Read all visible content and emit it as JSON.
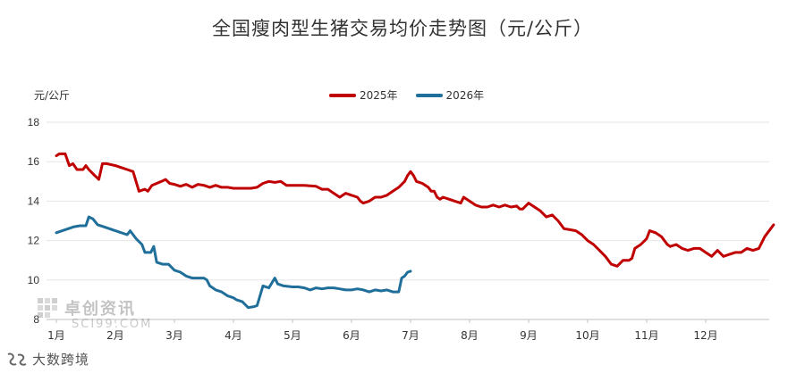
{
  "chart_data": {
    "type": "line",
    "title": "全国瘦肉型生猪交易均价走势图（元/公斤）",
    "ylabel": "元/公斤",
    "ylim": [
      8,
      18
    ],
    "yticks": [
      8,
      10,
      12,
      14,
      16,
      18
    ],
    "categories": [
      "1月",
      "2月",
      "3月",
      "4月",
      "5月",
      "6月",
      "7月",
      "8月",
      "9月",
      "10月",
      "11月",
      "12月"
    ],
    "grid": "horizontal",
    "legend": "top-center",
    "series": [
      {
        "name": "2025年",
        "color": "#c00000",
        "points": [
          [
            1.0,
            16.3
          ],
          [
            1.05,
            16.4
          ],
          [
            1.15,
            16.4
          ],
          [
            1.22,
            15.8
          ],
          [
            1.28,
            15.9
          ],
          [
            1.35,
            15.6
          ],
          [
            1.45,
            15.6
          ],
          [
            1.5,
            15.8
          ],
          [
            1.55,
            15.6
          ],
          [
            1.65,
            15.3
          ],
          [
            1.72,
            15.1
          ],
          [
            1.78,
            15.9
          ],
          [
            1.85,
            15.9
          ],
          [
            2.0,
            15.8
          ],
          [
            2.1,
            15.7
          ],
          [
            2.2,
            15.6
          ],
          [
            2.3,
            15.5
          ],
          [
            2.35,
            15.0
          ],
          [
            2.4,
            14.5
          ],
          [
            2.5,
            14.6
          ],
          [
            2.55,
            14.5
          ],
          [
            2.62,
            14.8
          ],
          [
            2.7,
            14.9
          ],
          [
            2.78,
            15.0
          ],
          [
            2.85,
            15.1
          ],
          [
            2.92,
            14.9
          ],
          [
            3.0,
            14.85
          ],
          [
            3.1,
            14.75
          ],
          [
            3.2,
            14.85
          ],
          [
            3.3,
            14.7
          ],
          [
            3.4,
            14.85
          ],
          [
            3.5,
            14.8
          ],
          [
            3.6,
            14.7
          ],
          [
            3.7,
            14.8
          ],
          [
            3.8,
            14.7
          ],
          [
            3.9,
            14.7
          ],
          [
            4.0,
            14.65
          ],
          [
            4.2,
            14.65
          ],
          [
            4.3,
            14.65
          ],
          [
            4.4,
            14.7
          ],
          [
            4.5,
            14.9
          ],
          [
            4.6,
            15.0
          ],
          [
            4.7,
            14.95
          ],
          [
            4.8,
            15.0
          ],
          [
            4.9,
            14.8
          ],
          [
            5.0,
            14.8
          ],
          [
            5.2,
            14.8
          ],
          [
            5.4,
            14.75
          ],
          [
            5.5,
            14.6
          ],
          [
            5.6,
            14.6
          ],
          [
            5.7,
            14.4
          ],
          [
            5.8,
            14.2
          ],
          [
            5.9,
            14.4
          ],
          [
            6.0,
            14.3
          ],
          [
            6.1,
            14.2
          ],
          [
            6.15,
            14.0
          ],
          [
            6.2,
            13.9
          ],
          [
            6.3,
            14.0
          ],
          [
            6.4,
            14.2
          ],
          [
            6.5,
            14.2
          ],
          [
            6.6,
            14.3
          ],
          [
            6.7,
            14.5
          ],
          [
            6.8,
            14.7
          ],
          [
            6.9,
            15.0
          ],
          [
            6.95,
            15.3
          ],
          [
            7.0,
            15.5
          ],
          [
            7.05,
            15.3
          ],
          [
            7.1,
            15.0
          ],
          [
            7.2,
            14.9
          ],
          [
            7.3,
            14.7
          ],
          [
            7.35,
            14.5
          ],
          [
            7.4,
            14.5
          ],
          [
            7.45,
            14.2
          ],
          [
            7.5,
            14.1
          ],
          [
            7.55,
            14.2
          ],
          [
            7.65,
            14.1
          ],
          [
            7.75,
            14.0
          ],
          [
            7.85,
            13.9
          ],
          [
            7.9,
            14.2
          ],
          [
            8.0,
            14.0
          ],
          [
            8.1,
            13.8
          ],
          [
            8.2,
            13.7
          ],
          [
            8.3,
            13.7
          ],
          [
            8.4,
            13.8
          ],
          [
            8.5,
            13.7
          ],
          [
            8.6,
            13.8
          ],
          [
            8.7,
            13.7
          ],
          [
            8.8,
            13.75
          ],
          [
            8.85,
            13.6
          ],
          [
            8.9,
            13.6
          ],
          [
            9.0,
            13.9
          ],
          [
            9.1,
            13.7
          ],
          [
            9.2,
            13.5
          ],
          [
            9.3,
            13.2
          ],
          [
            9.4,
            13.3
          ],
          [
            9.5,
            13.0
          ],
          [
            9.6,
            12.6
          ],
          [
            9.7,
            12.55
          ],
          [
            9.8,
            12.5
          ],
          [
            9.9,
            12.3
          ],
          [
            10.0,
            12.0
          ],
          [
            10.1,
            11.8
          ],
          [
            10.2,
            11.5
          ],
          [
            10.3,
            11.2
          ],
          [
            10.4,
            10.8
          ],
          [
            10.5,
            10.7
          ],
          [
            10.6,
            11.0
          ],
          [
            10.7,
            11.0
          ],
          [
            10.75,
            11.1
          ],
          [
            10.8,
            11.6
          ],
          [
            10.9,
            11.8
          ],
          [
            11.0,
            12.1
          ],
          [
            11.05,
            12.5
          ],
          [
            11.15,
            12.4
          ],
          [
            11.25,
            12.2
          ],
          [
            11.35,
            11.8
          ],
          [
            11.4,
            11.7
          ],
          [
            11.5,
            11.8
          ],
          [
            11.6,
            11.6
          ],
          [
            11.7,
            11.5
          ],
          [
            11.8,
            11.6
          ],
          [
            11.9,
            11.6
          ],
          [
            12.0,
            11.4
          ],
          [
            12.1,
            11.2
          ],
          [
            12.2,
            11.5
          ],
          [
            12.3,
            11.2
          ],
          [
            12.4,
            11.3
          ],
          [
            12.5,
            11.4
          ],
          [
            12.6,
            11.4
          ],
          [
            12.7,
            11.6
          ],
          [
            12.8,
            11.5
          ],
          [
            12.9,
            11.6
          ],
          [
            13.0,
            12.2
          ],
          [
            13.1,
            12.6
          ],
          [
            13.15,
            12.8
          ]
        ]
      },
      {
        "name": "2026年",
        "color": "#1f6f9a",
        "points": [
          [
            1.0,
            12.4
          ],
          [
            1.1,
            12.5
          ],
          [
            1.2,
            12.6
          ],
          [
            1.3,
            12.7
          ],
          [
            1.4,
            12.75
          ],
          [
            1.5,
            12.75
          ],
          [
            1.55,
            13.2
          ],
          [
            1.62,
            13.1
          ],
          [
            1.7,
            12.8
          ],
          [
            1.8,
            12.7
          ],
          [
            1.9,
            12.6
          ],
          [
            2.0,
            12.5
          ],
          [
            2.1,
            12.4
          ],
          [
            2.2,
            12.3
          ],
          [
            2.25,
            12.5
          ],
          [
            2.35,
            12.1
          ],
          [
            2.45,
            11.8
          ],
          [
            2.5,
            11.4
          ],
          [
            2.6,
            11.4
          ],
          [
            2.65,
            11.7
          ],
          [
            2.7,
            10.9
          ],
          [
            2.8,
            10.8
          ],
          [
            2.9,
            10.8
          ],
          [
            3.0,
            10.5
          ],
          [
            3.1,
            10.4
          ],
          [
            3.2,
            10.2
          ],
          [
            3.3,
            10.1
          ],
          [
            3.4,
            10.1
          ],
          [
            3.5,
            10.1
          ],
          [
            3.55,
            10.0
          ],
          [
            3.6,
            9.7
          ],
          [
            3.7,
            9.5
          ],
          [
            3.8,
            9.4
          ],
          [
            3.9,
            9.2
          ],
          [
            4.0,
            9.1
          ],
          [
            4.05,
            9.0
          ],
          [
            4.15,
            8.9
          ],
          [
            4.25,
            8.6
          ],
          [
            4.35,
            8.65
          ],
          [
            4.4,
            8.7
          ],
          [
            4.5,
            9.7
          ],
          [
            4.6,
            9.6
          ],
          [
            4.7,
            10.1
          ],
          [
            4.75,
            9.8
          ],
          [
            4.85,
            9.7
          ],
          [
            5.0,
            9.65
          ],
          [
            5.1,
            9.65
          ],
          [
            5.2,
            9.6
          ],
          [
            5.3,
            9.5
          ],
          [
            5.4,
            9.6
          ],
          [
            5.5,
            9.55
          ],
          [
            5.6,
            9.6
          ],
          [
            5.7,
            9.6
          ],
          [
            5.8,
            9.55
          ],
          [
            5.9,
            9.5
          ],
          [
            6.0,
            9.5
          ],
          [
            6.1,
            9.55
          ],
          [
            6.2,
            9.5
          ],
          [
            6.3,
            9.4
          ],
          [
            6.4,
            9.5
          ],
          [
            6.5,
            9.45
          ],
          [
            6.6,
            9.5
          ],
          [
            6.7,
            9.4
          ],
          [
            6.8,
            9.4
          ],
          [
            6.85,
            10.1
          ],
          [
            6.9,
            10.2
          ],
          [
            6.95,
            10.4
          ],
          [
            7.0,
            10.45
          ]
        ]
      }
    ]
  },
  "watermark": {
    "name": "卓创资讯",
    "sub": "SCI99.COM"
  },
  "brand": {
    "name": "大数跨境"
  }
}
